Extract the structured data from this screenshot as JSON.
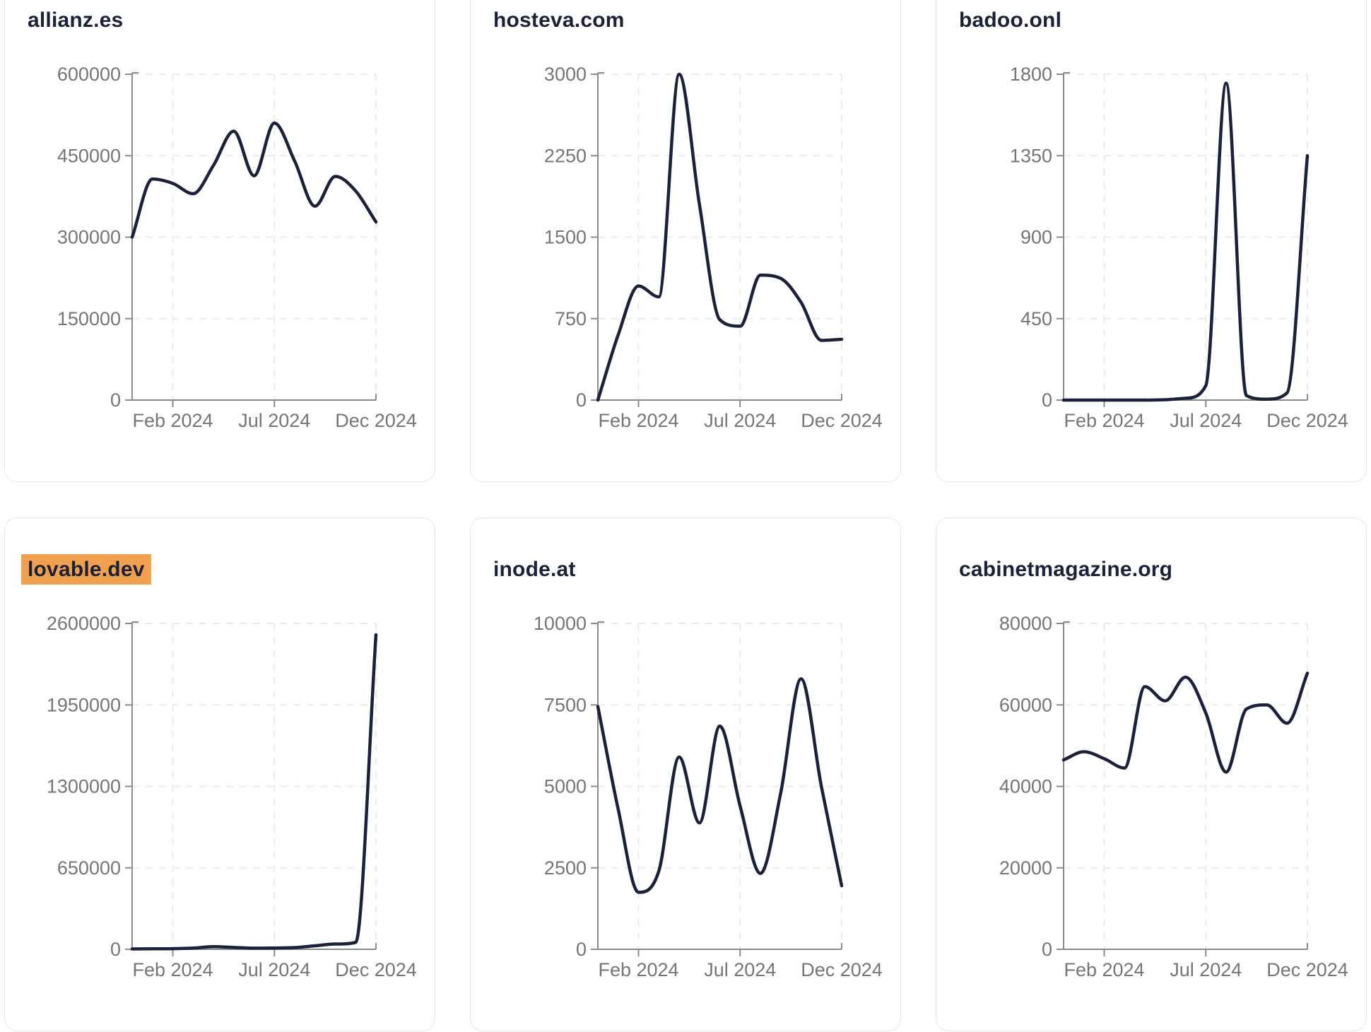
{
  "page": {
    "background": "#ffffff"
  },
  "style": {
    "line_color": "#1b2139",
    "axis_color": "#8b8b8b",
    "tick_label_color": "#767676",
    "grid_color": "#ebebeb",
    "card_border_color": "#e7e8ed",
    "card_bg": "#ffffff",
    "title_color": "#1b2139",
    "highlight_bg": "#f0a04e"
  },
  "chart_data": [
    {
      "type": "line",
      "title": "allianz.es",
      "title_highlighted": false,
      "x": [
        "Dec 2023",
        "Jan 2024",
        "Feb 2024",
        "Mar 2024",
        "Apr 2024",
        "May 2024",
        "Jun 2024",
        "Jul 2024",
        "Aug 2024",
        "Sep 2024",
        "Oct 2024",
        "Nov 2024",
        "Dec 2024"
      ],
      "values": [
        300000,
        407000,
        399000,
        380000,
        432000,
        495000,
        413000,
        510000,
        440000,
        357000,
        412000,
        385000,
        328000
      ],
      "y_ticks": [
        0,
        150000,
        300000,
        450000,
        600000
      ],
      "ylim": [
        0,
        600000
      ],
      "x_tick_labels": [
        "Feb 2024",
        "Jul 2024",
        "Dec 2024"
      ],
      "x_tick_month_index": [
        2,
        7,
        12
      ],
      "grid": "dashed",
      "legend": "none"
    },
    {
      "type": "line",
      "title": "hosteva.com",
      "title_highlighted": false,
      "x": [
        "Dec 2023",
        "Jan 2024",
        "Feb 2024",
        "Mar 2024",
        "Apr 2024",
        "May 2024",
        "Jun 2024",
        "Jul 2024",
        "Aug 2024",
        "Sep 2024",
        "Oct 2024",
        "Nov 2024",
        "Dec 2024"
      ],
      "values": [
        0,
        600,
        1050,
        950,
        3000,
        1800,
        740,
        680,
        1150,
        1120,
        900,
        550,
        560
      ],
      "y_ticks": [
        0,
        750,
        1500,
        2250,
        3000
      ],
      "ylim": [
        0,
        3000
      ],
      "x_tick_labels": [
        "Feb 2024",
        "Jul 2024",
        "Dec 2024"
      ],
      "x_tick_month_index": [
        2,
        7,
        12
      ],
      "grid": "dashed",
      "legend": "none"
    },
    {
      "type": "line",
      "title": "badoo.onl",
      "title_highlighted": false,
      "x": [
        "Dec 2023",
        "Jan 2024",
        "Feb 2024",
        "Mar 2024",
        "Apr 2024",
        "May 2024",
        "Jun 2024",
        "Jul 2024",
        "Aug 2024",
        "Sep 2024",
        "Oct 2024",
        "Nov 2024",
        "Dec 2024"
      ],
      "values": [
        0,
        0,
        0,
        0,
        0,
        2,
        10,
        80,
        1750,
        25,
        5,
        40,
        1350
      ],
      "y_ticks": [
        0,
        450,
        900,
        1350,
        1800
      ],
      "ylim": [
        0,
        1800
      ],
      "x_tick_labels": [
        "Feb 2024",
        "Jul 2024",
        "Dec 2024"
      ],
      "x_tick_month_index": [
        2,
        7,
        12
      ],
      "grid": "dashed",
      "legend": "none"
    },
    {
      "type": "line",
      "title": "lovable.dev",
      "title_highlighted": true,
      "x": [
        "Dec 2023",
        "Jan 2024",
        "Feb 2024",
        "Mar 2024",
        "Apr 2024",
        "May 2024",
        "Jun 2024",
        "Jul 2024",
        "Aug 2024",
        "Sep 2024",
        "Oct 2024",
        "Nov 2024",
        "Dec 2024"
      ],
      "values": [
        3000,
        4000,
        5000,
        10000,
        21000,
        15000,
        9000,
        10000,
        14000,
        28000,
        42000,
        55000,
        2510000
      ],
      "y_ticks": [
        0,
        650000,
        1300000,
        1950000,
        2600000
      ],
      "ylim": [
        0,
        2600000
      ],
      "x_tick_labels": [
        "Feb 2024",
        "Jul 2024",
        "Dec 2024"
      ],
      "x_tick_month_index": [
        2,
        7,
        12
      ],
      "grid": "dashed",
      "legend": "none"
    },
    {
      "type": "line",
      "title": "inode.at",
      "title_highlighted": false,
      "x": [
        "Dec 2023",
        "Jan 2024",
        "Feb 2024",
        "Mar 2024",
        "Apr 2024",
        "May 2024",
        "Jun 2024",
        "Jul 2024",
        "Aug 2024",
        "Sep 2024",
        "Oct 2024",
        "Nov 2024",
        "Dec 2024"
      ],
      "values": [
        7450,
        4300,
        1750,
        2400,
        5900,
        3880,
        6850,
        4400,
        2330,
        4800,
        8300,
        5000,
        1950
      ],
      "y_ticks": [
        0,
        2500,
        5000,
        7500,
        10000
      ],
      "ylim": [
        0,
        10000
      ],
      "x_tick_labels": [
        "Feb 2024",
        "Jul 2024",
        "Dec 2024"
      ],
      "x_tick_month_index": [
        2,
        7,
        12
      ],
      "grid": "dashed",
      "legend": "none"
    },
    {
      "type": "line",
      "title": "cabinetmagazine.org",
      "title_highlighted": false,
      "x": [
        "Dec 2023",
        "Jan 2024",
        "Feb 2024",
        "Mar 2024",
        "Apr 2024",
        "May 2024",
        "Jun 2024",
        "Jul 2024",
        "Aug 2024",
        "Sep 2024",
        "Oct 2024",
        "Nov 2024",
        "Dec 2024"
      ],
      "values": [
        46500,
        48500,
        46800,
        44500,
        64500,
        61000,
        66800,
        58000,
        43500,
        59000,
        60000,
        55500,
        67800
      ],
      "y_ticks": [
        0,
        20000,
        40000,
        60000,
        80000
      ],
      "ylim": [
        0,
        80000
      ],
      "x_tick_labels": [
        "Feb 2024",
        "Jul 2024",
        "Dec 2024"
      ],
      "x_tick_month_index": [
        2,
        7,
        12
      ],
      "grid": "dashed",
      "legend": "none"
    }
  ]
}
